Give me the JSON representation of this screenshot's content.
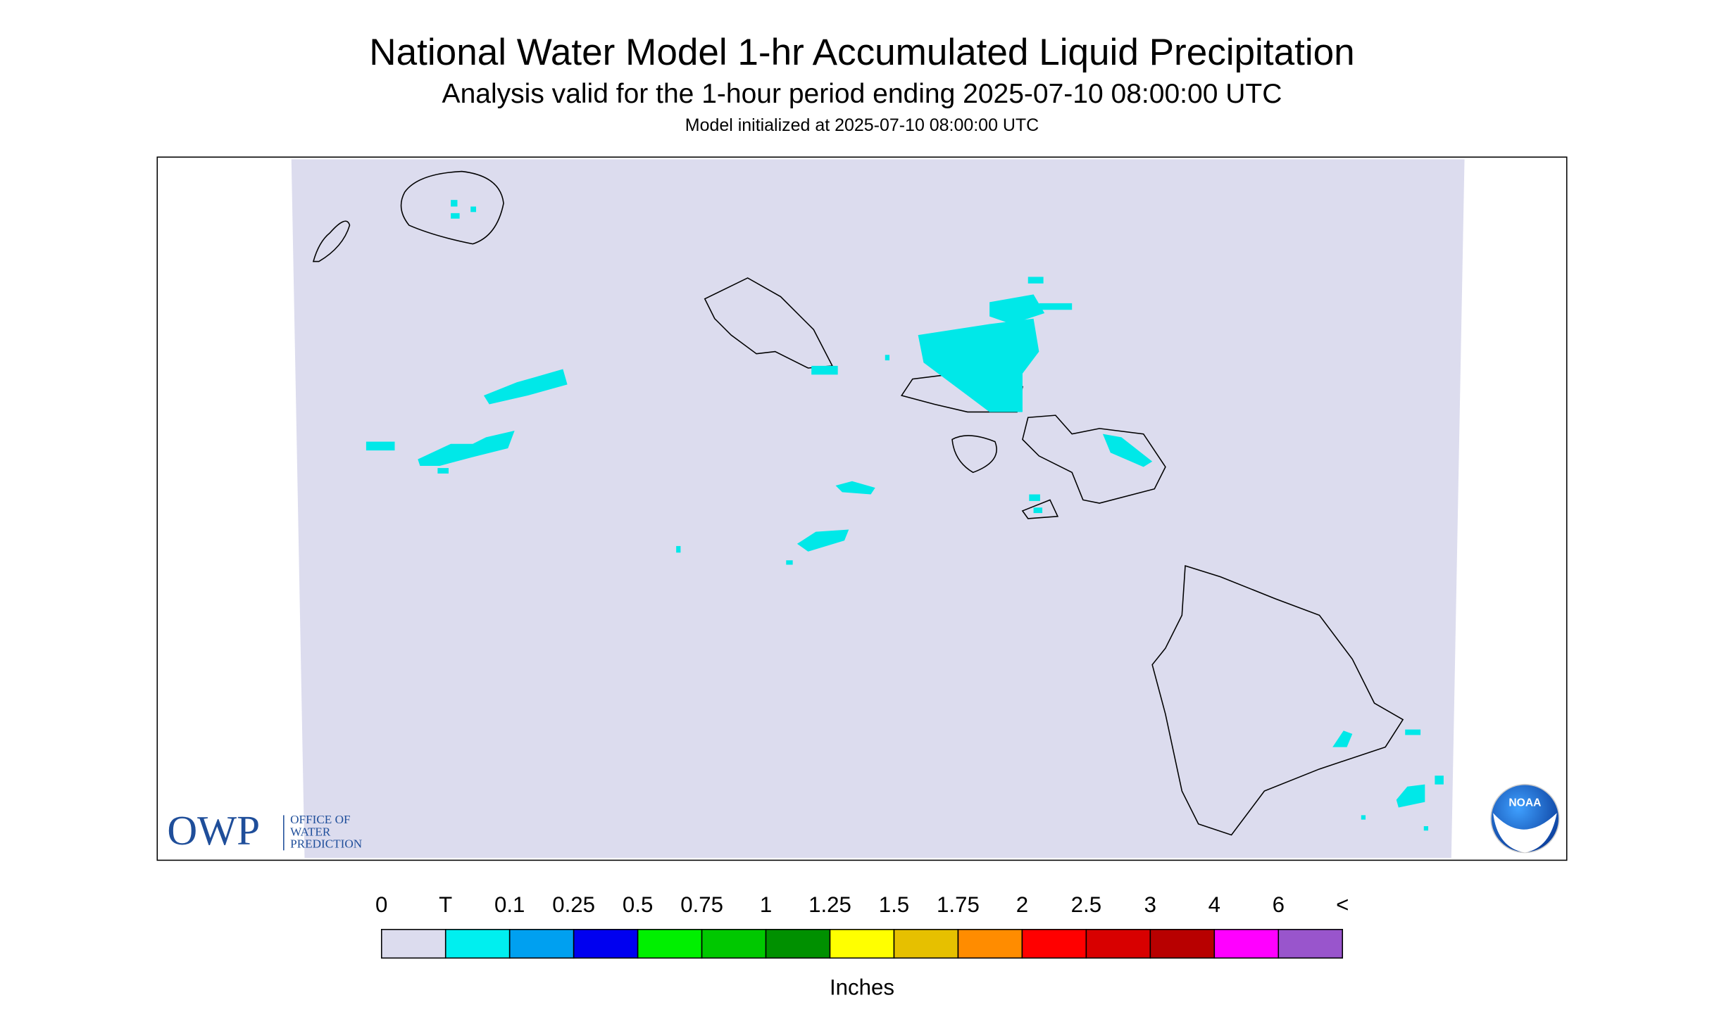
{
  "header": {
    "title": "National Water Model 1-hr Accumulated Liquid Precipitation",
    "subtitle": "Analysis valid for the 1-hour period ending 2025-07-10 08:00:00 UTC",
    "note": "Model initialized at 2025-07-10 08:00:00 UTC"
  },
  "legend": {
    "labels": [
      "0",
      "T",
      "0.1",
      "0.25",
      "0.5",
      "0.75",
      "1",
      "1.25",
      "1.5",
      "1.75",
      "2",
      "2.5",
      "3",
      "4",
      "6",
      "<"
    ],
    "colors": [
      "#dcdcee",
      "#00efef",
      "#00a0f0",
      "#0000f0",
      "#00f000",
      "#00c800",
      "#009000",
      "#ffff00",
      "#e6c000",
      "#ff8c00",
      "#ff0000",
      "#d80000",
      "#b80000",
      "#ff00ff",
      "#9955cc"
    ],
    "unit": "Inches"
  },
  "logos": {
    "owp": "OWP",
    "owp_text": [
      "OFFICE OF",
      "WATER",
      "PREDICTION"
    ],
    "noaa": "NOAA"
  }
}
